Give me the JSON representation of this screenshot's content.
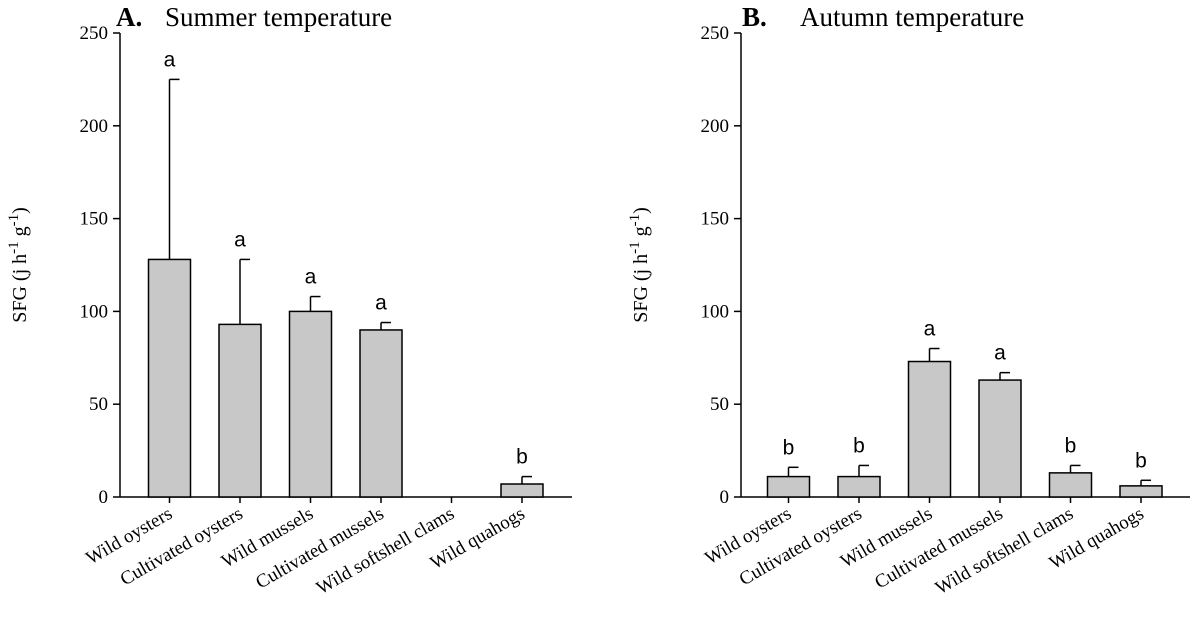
{
  "chart_data": [
    {
      "type": "bar",
      "panel_letter": "A.",
      "title": "Summer temperature",
      "ylabel": "SFG (j h-1 g-1)",
      "ylim": [
        0,
        250
      ],
      "yticks": [
        0,
        50,
        100,
        150,
        200,
        250
      ],
      "categories": [
        "Wild oysters",
        "Cultivated oysters",
        "Wild mussels",
        "Cultivated mussels",
        "Wild softshell clams",
        "Wild quahogs"
      ],
      "values": [
        128,
        93,
        100,
        90,
        null,
        7
      ],
      "errors": [
        97,
        35,
        8,
        4,
        null,
        4
      ],
      "significance": [
        "a",
        "a",
        "a",
        "a",
        "",
        "b"
      ],
      "bar_color": "#c8c8c8"
    },
    {
      "type": "bar",
      "panel_letter": "B.",
      "title": "Autumn temperature",
      "ylabel": "SFG (j h-1 g-1)",
      "ylim": [
        0,
        250
      ],
      "yticks": [
        0,
        50,
        100,
        150,
        200,
        250
      ],
      "categories": [
        "Wild oysters",
        "Cultivated oysters",
        "Wild mussels",
        "Cultivated mussels",
        "Wild softshell clams",
        "Wild quahogs"
      ],
      "values": [
        11,
        11,
        73,
        63,
        13,
        6
      ],
      "errors": [
        5,
        6,
        7,
        4,
        4,
        3
      ],
      "significance": [
        "b",
        "b",
        "a",
        "a",
        "b",
        "b"
      ],
      "bar_color": "#c8c8c8"
    }
  ]
}
